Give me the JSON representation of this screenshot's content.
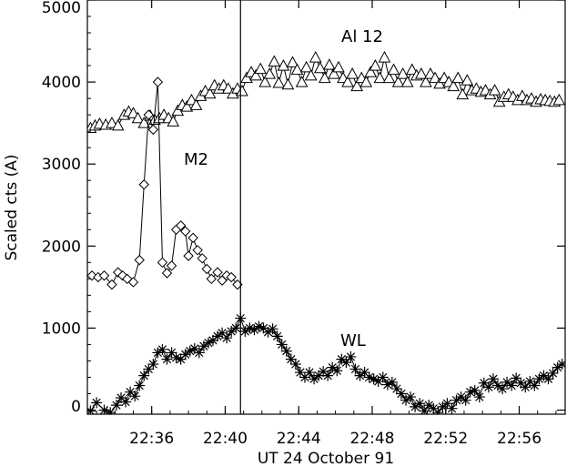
{
  "chart_data": {
    "type": "line",
    "xlabel": "UT 24 October 91",
    "ylabel": "Scaled cts (A)",
    "xlim": [
      "22:32:30",
      "22:58:30"
    ],
    "ylim": [
      -50,
      5000
    ],
    "x_ticks": [
      "22:36",
      "22:40",
      "22:44",
      "22:48",
      "22:52",
      "22:56"
    ],
    "y_ticks": [
      0,
      1000,
      2000,
      3000,
      4000,
      5000
    ],
    "vertical_marker": "22:40:50",
    "series": [
      {
        "name": "Al 12",
        "marker": "triangle",
        "points": [
          [
            "22:32:40",
            3440
          ],
          [
            "22:32:55",
            3470
          ],
          [
            "22:33:10",
            3490
          ],
          [
            "22:33:30",
            3480
          ],
          [
            "22:33:50",
            3500
          ],
          [
            "22:34:10",
            3470
          ],
          [
            "22:34:30",
            3600
          ],
          [
            "22:34:45",
            3640
          ],
          [
            "22:35:00",
            3620
          ],
          [
            "22:35:15",
            3560
          ],
          [
            "22:35:35",
            3500
          ],
          [
            "22:35:55",
            3590
          ],
          [
            "22:36:10",
            3540
          ],
          [
            "22:36:25",
            3560
          ],
          [
            "22:36:40",
            3600
          ],
          [
            "22:36:55",
            3560
          ],
          [
            "22:37:10",
            3520
          ],
          [
            "22:37:25",
            3650
          ],
          [
            "22:37:40",
            3720
          ],
          [
            "22:37:55",
            3700
          ],
          [
            "22:38:10",
            3780
          ],
          [
            "22:38:25",
            3720
          ],
          [
            "22:38:40",
            3830
          ],
          [
            "22:38:55",
            3890
          ],
          [
            "22:39:10",
            3860
          ],
          [
            "22:39:25",
            3960
          ],
          [
            "22:39:40",
            3920
          ],
          [
            "22:39:55",
            3960
          ],
          [
            "22:40:10",
            3920
          ],
          [
            "22:40:25",
            3860
          ],
          [
            "22:40:40",
            3920
          ],
          [
            "22:40:55",
            3890
          ],
          [
            "22:41:10",
            4050
          ],
          [
            "22:41:25",
            4120
          ],
          [
            "22:41:40",
            4080
          ],
          [
            "22:41:55",
            4160
          ],
          [
            "22:42:10",
            4000
          ],
          [
            "22:42:25",
            4100
          ],
          [
            "22:42:40",
            4250
          ],
          [
            "22:42:55",
            3990
          ],
          [
            "22:43:10",
            4200
          ],
          [
            "22:43:25",
            3970
          ],
          [
            "22:43:40",
            4240
          ],
          [
            "22:43:55",
            4150
          ],
          [
            "22:44:10",
            4000
          ],
          [
            "22:44:25",
            4180
          ],
          [
            "22:44:40",
            4080
          ],
          [
            "22:44:55",
            4300
          ],
          [
            "22:45:10",
            4170
          ],
          [
            "22:45:25",
            4050
          ],
          [
            "22:45:40",
            4210
          ],
          [
            "22:45:55",
            4100
          ],
          [
            "22:46:10",
            4180
          ],
          [
            "22:46:25",
            4050
          ],
          [
            "22:46:40",
            4000
          ],
          [
            "22:46:55",
            4100
          ],
          [
            "22:47:10",
            3950
          ],
          [
            "22:47:25",
            4050
          ],
          [
            "22:47:40",
            4000
          ],
          [
            "22:47:55",
            4120
          ],
          [
            "22:48:10",
            4200
          ],
          [
            "22:48:25",
            4050
          ],
          [
            "22:48:40",
            4300
          ],
          [
            "22:48:55",
            4050
          ],
          [
            "22:49:10",
            4150
          ],
          [
            "22:49:25",
            4000
          ],
          [
            "22:49:40",
            4100
          ],
          [
            "22:49:55",
            4000
          ],
          [
            "22:50:10",
            4150
          ],
          [
            "22:50:25",
            4080
          ],
          [
            "22:50:40",
            4100
          ],
          [
            "22:50:55",
            4000
          ],
          [
            "22:51:10",
            4100
          ],
          [
            "22:51:25",
            4050
          ],
          [
            "22:51:40",
            3980
          ],
          [
            "22:51:55",
            4050
          ],
          [
            "22:52:10",
            4000
          ],
          [
            "22:52:25",
            3950
          ],
          [
            "22:52:40",
            4050
          ],
          [
            "22:52:55",
            3850
          ],
          [
            "22:53:10",
            4020
          ],
          [
            "22:53:25",
            3900
          ],
          [
            "22:53:40",
            3920
          ],
          [
            "22:53:55",
            3880
          ],
          [
            "22:54:10",
            3900
          ],
          [
            "22:54:25",
            3850
          ],
          [
            "22:54:40",
            3900
          ],
          [
            "22:54:55",
            3760
          ],
          [
            "22:55:10",
            3820
          ],
          [
            "22:55:25",
            3850
          ],
          [
            "22:55:40",
            3820
          ],
          [
            "22:55:55",
            3780
          ],
          [
            "22:56:10",
            3830
          ],
          [
            "22:56:25",
            3780
          ],
          [
            "22:56:40",
            3800
          ],
          [
            "22:56:55",
            3760
          ],
          [
            "22:57:10",
            3790
          ],
          [
            "22:57:25",
            3780
          ],
          [
            "22:57:40",
            3770
          ],
          [
            "22:57:55",
            3760
          ],
          [
            "22:58:10",
            3780
          ]
        ]
      },
      {
        "name": "M2",
        "marker": "diamond",
        "points": [
          [
            "22:32:45",
            1640
          ],
          [
            "22:33:05",
            1620
          ],
          [
            "22:33:25",
            1640
          ],
          [
            "22:33:50",
            1530
          ],
          [
            "22:34:10",
            1680
          ],
          [
            "22:34:25",
            1640
          ],
          [
            "22:34:40",
            1600
          ],
          [
            "22:35:00",
            1560
          ],
          [
            "22:35:20",
            1830
          ],
          [
            "22:35:35",
            2750
          ],
          [
            "22:35:50",
            3600
          ],
          [
            "22:36:05",
            3420
          ],
          [
            "22:36:20",
            4000
          ],
          [
            "22:36:35",
            1800
          ],
          [
            "22:36:50",
            1670
          ],
          [
            "22:37:05",
            1760
          ],
          [
            "22:37:20",
            2200
          ],
          [
            "22:37:35",
            2250
          ],
          [
            "22:37:50",
            2180
          ],
          [
            "22:38:00",
            1880
          ],
          [
            "22:38:15",
            2100
          ],
          [
            "22:38:30",
            1950
          ],
          [
            "22:38:45",
            1850
          ],
          [
            "22:39:00",
            1720
          ],
          [
            "22:39:15",
            1600
          ],
          [
            "22:39:35",
            1680
          ],
          [
            "22:39:50",
            1580
          ],
          [
            "22:40:05",
            1640
          ],
          [
            "22:40:20",
            1620
          ],
          [
            "22:40:40",
            1530
          ]
        ]
      },
      {
        "name": "WL",
        "marker": "asterisk",
        "points": [
          [
            "22:32:40",
            -10
          ],
          [
            "22:33:00",
            90
          ],
          [
            "22:33:25",
            0
          ],
          [
            "22:33:45",
            -30
          ],
          [
            "22:34:05",
            60
          ],
          [
            "22:34:20",
            150
          ],
          [
            "22:34:35",
            100
          ],
          [
            "22:34:50",
            220
          ],
          [
            "22:35:05",
            170
          ],
          [
            "22:35:20",
            300
          ],
          [
            "22:35:35",
            420
          ],
          [
            "22:35:50",
            500
          ],
          [
            "22:36:05",
            560
          ],
          [
            "22:36:20",
            700
          ],
          [
            "22:36:35",
            740
          ],
          [
            "22:36:50",
            620
          ],
          [
            "22:37:05",
            700
          ],
          [
            "22:37:20",
            640
          ],
          [
            "22:37:35",
            620
          ],
          [
            "22:37:50",
            680
          ],
          [
            "22:38:05",
            720
          ],
          [
            "22:38:20",
            750
          ],
          [
            "22:38:35",
            700
          ],
          [
            "22:38:50",
            780
          ],
          [
            "22:39:05",
            820
          ],
          [
            "22:39:20",
            850
          ],
          [
            "22:39:35",
            900
          ],
          [
            "22:39:50",
            940
          ],
          [
            "22:40:05",
            880
          ],
          [
            "22:40:20",
            960
          ],
          [
            "22:40:35",
            1000
          ],
          [
            "22:40:50",
            1120
          ],
          [
            "22:41:05",
            960
          ],
          [
            "22:41:20",
            1000
          ],
          [
            "22:41:35",
            980
          ],
          [
            "22:41:50",
            1020
          ],
          [
            "22:42:05",
            1000
          ],
          [
            "22:42:20",
            950
          ],
          [
            "22:42:35",
            990
          ],
          [
            "22:42:50",
            900
          ],
          [
            "22:43:05",
            800
          ],
          [
            "22:43:20",
            720
          ],
          [
            "22:43:35",
            620
          ],
          [
            "22:43:50",
            560
          ],
          [
            "22:44:05",
            460
          ],
          [
            "22:44:20",
            400
          ],
          [
            "22:44:35",
            460
          ],
          [
            "22:44:50",
            380
          ],
          [
            "22:45:05",
            420
          ],
          [
            "22:45:20",
            470
          ],
          [
            "22:45:35",
            420
          ],
          [
            "22:45:50",
            520
          ],
          [
            "22:46:05",
            480
          ],
          [
            "22:46:20",
            620
          ],
          [
            "22:46:35",
            580
          ],
          [
            "22:46:50",
            650
          ],
          [
            "22:47:05",
            500
          ],
          [
            "22:47:20",
            420
          ],
          [
            "22:47:35",
            460
          ],
          [
            "22:47:50",
            400
          ],
          [
            "22:48:05",
            380
          ],
          [
            "22:48:20",
            350
          ],
          [
            "22:48:35",
            400
          ],
          [
            "22:48:50",
            310
          ],
          [
            "22:49:05",
            340
          ],
          [
            "22:49:20",
            260
          ],
          [
            "22:49:35",
            200
          ],
          [
            "22:49:50",
            120
          ],
          [
            "22:50:05",
            160
          ],
          [
            "22:50:20",
            40
          ],
          [
            "22:50:35",
            80
          ],
          [
            "22:50:50",
            -10
          ],
          [
            "22:51:05",
            60
          ],
          [
            "22:51:20",
            20
          ],
          [
            "22:51:35",
            -30
          ],
          [
            "22:51:50",
            40
          ],
          [
            "22:52:05",
            80
          ],
          [
            "22:52:20",
            20
          ],
          [
            "22:52:35",
            120
          ],
          [
            "22:52:50",
            160
          ],
          [
            "22:53:05",
            120
          ],
          [
            "22:53:20",
            220
          ],
          [
            "22:53:35",
            240
          ],
          [
            "22:53:50",
            160
          ],
          [
            "22:54:05",
            330
          ],
          [
            "22:54:20",
            280
          ],
          [
            "22:54:35",
            380
          ],
          [
            "22:54:50",
            300
          ],
          [
            "22:55:05",
            260
          ],
          [
            "22:55:20",
            340
          ],
          [
            "22:55:35",
            300
          ],
          [
            "22:55:50",
            390
          ],
          [
            "22:56:05",
            330
          ],
          [
            "22:56:20",
            280
          ],
          [
            "22:56:35",
            350
          ],
          [
            "22:56:50",
            300
          ],
          [
            "22:57:05",
            380
          ],
          [
            "22:57:20",
            420
          ],
          [
            "22:57:35",
            380
          ],
          [
            "22:57:50",
            450
          ],
          [
            "22:58:05",
            520
          ],
          [
            "22:58:20",
            560
          ]
        ]
      }
    ]
  }
}
